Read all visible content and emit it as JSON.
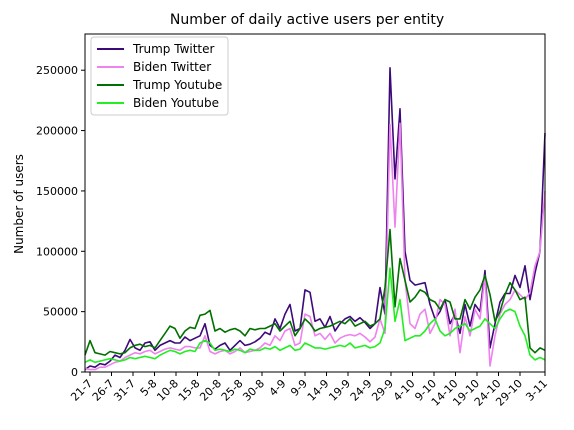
{
  "chart_data": {
    "type": "line",
    "title": "Number of daily active users per entity",
    "ylabel": "Number of users",
    "xlabel": "",
    "ylim": [
      0,
      280000
    ],
    "yticks": [
      0,
      50000,
      100000,
      150000,
      200000,
      250000
    ],
    "x_tick_labels": [
      "21-7",
      "26-7",
      "31-7",
      "5-8",
      "10-8",
      "15-8",
      "20-8",
      "25-8",
      "30-8",
      "4-9",
      "9-9",
      "14-9",
      "19-9",
      "24-9",
      "29-9",
      "4-10",
      "9-10",
      "14-10",
      "19-10",
      "24-10",
      "29-10",
      "3-11"
    ],
    "legend_position": "upper left",
    "grid": false,
    "series": [
      {
        "name": "Trump Twitter",
        "color": "#3d0a7a",
        "values": [
          2000,
          5000,
          4000,
          7000,
          6000,
          9000,
          14000,
          12000,
          18000,
          27000,
          20000,
          18000,
          24000,
          25000,
          18000,
          22000,
          24000,
          26000,
          24000,
          24000,
          29000,
          26000,
          28000,
          30000,
          40000,
          22000,
          19000,
          22000,
          24000,
          18000,
          22000,
          26000,
          22000,
          23000,
          25000,
          28000,
          33000,
          31000,
          44000,
          36000,
          48000,
          56000,
          34000,
          36000,
          68000,
          66000,
          42000,
          44000,
          37000,
          46000,
          34000,
          40000,
          44000,
          46000,
          42000,
          45000,
          41000,
          36000,
          40000,
          70000,
          48000,
          252000,
          160000,
          218000,
          100000,
          76000,
          72000,
          73000,
          74000,
          56000,
          44000,
          50000,
          60000,
          40000,
          48000,
          32000,
          56000,
          38000,
          56000,
          50000,
          84000,
          20000,
          40000,
          58000,
          65000,
          65000,
          80000,
          70000,
          88000,
          60000,
          82000,
          100000,
          198000
        ]
      },
      {
        "name": "Biden Twitter",
        "color": "#ee82ee",
        "values": [
          3000,
          2000,
          2000,
          4000,
          4000,
          6000,
          8000,
          9000,
          12000,
          14000,
          16000,
          15000,
          17000,
          18000,
          15000,
          17000,
          19000,
          20000,
          19000,
          18000,
          21000,
          21000,
          20000,
          20000,
          30000,
          17000,
          15000,
          17000,
          18000,
          15000,
          17000,
          20000,
          16000,
          17000,
          18000,
          20000,
          24000,
          22000,
          30000,
          26000,
          34000,
          36000,
          22000,
          24000,
          48000,
          46000,
          30000,
          32000,
          27000,
          32000,
          24000,
          28000,
          30000,
          31000,
          30000,
          32000,
          29000,
          25000,
          29000,
          44000,
          32000,
          205000,
          120000,
          206000,
          76000,
          40000,
          36000,
          48000,
          52000,
          32000,
          40000,
          60000,
          56000,
          30000,
          52000,
          16000,
          46000,
          30000,
          52000,
          44000,
          80000,
          5000,
          30000,
          48000,
          56000,
          60000,
          68000,
          64000,
          60000,
          66000,
          88000,
          100000,
          150000
        ]
      },
      {
        "name": "Trump Youtube",
        "color": "#007000",
        "values": [
          14000,
          26000,
          16000,
          15000,
          14000,
          17000,
          16000,
          15000,
          16000,
          20000,
          22000,
          23000,
          21000,
          22000,
          20000,
          26000,
          32000,
          38000,
          36000,
          28000,
          34000,
          37000,
          36000,
          47000,
          48000,
          51000,
          34000,
          36000,
          33000,
          35000,
          36000,
          34000,
          30000,
          36000,
          35000,
          36000,
          36000,
          38000,
          40000,
          34000,
          38000,
          42000,
          30000,
          36000,
          44000,
          40000,
          34000,
          36000,
          37000,
          38000,
          40000,
          42000,
          40000,
          44000,
          38000,
          40000,
          42000,
          38000,
          40000,
          44000,
          70000,
          118000,
          54000,
          94000,
          76000,
          58000,
          62000,
          68000,
          66000,
          60000,
          58000,
          52000,
          60000,
          58000,
          44000,
          44000,
          60000,
          52000,
          62000,
          68000,
          80000,
          64000,
          42000,
          50000,
          64000,
          74000,
          68000,
          60000,
          62000,
          20000,
          16000,
          20000,
          18000
        ]
      },
      {
        "name": "Biden Youtube",
        "color": "#22ee22",
        "values": [
          8000,
          10000,
          8000,
          9000,
          10000,
          11000,
          10000,
          9000,
          10000,
          12000,
          11000,
          12000,
          13000,
          12000,
          11000,
          14000,
          16000,
          18000,
          17000,
          15000,
          17000,
          18000,
          17000,
          24000,
          26000,
          24000,
          18000,
          19000,
          18000,
          17000,
          19000,
          18000,
          16000,
          19000,
          18000,
          18000,
          20000,
          19000,
          21000,
          18000,
          20000,
          22000,
          18000,
          19000,
          24000,
          22000,
          20000,
          20000,
          19000,
          20000,
          21000,
          22000,
          21000,
          24000,
          20000,
          21000,
          22000,
          20000,
          21000,
          24000,
          36000,
          86000,
          42000,
          60000,
          26000,
          28000,
          30000,
          30000,
          34000,
          40000,
          44000,
          34000,
          30000,
          32000,
          36000,
          38000,
          40000,
          34000,
          36000,
          38000,
          44000,
          40000,
          36000,
          44000,
          50000,
          52000,
          50000,
          38000,
          30000,
          14000,
          10000,
          12000,
          10000
        ]
      }
    ]
  }
}
